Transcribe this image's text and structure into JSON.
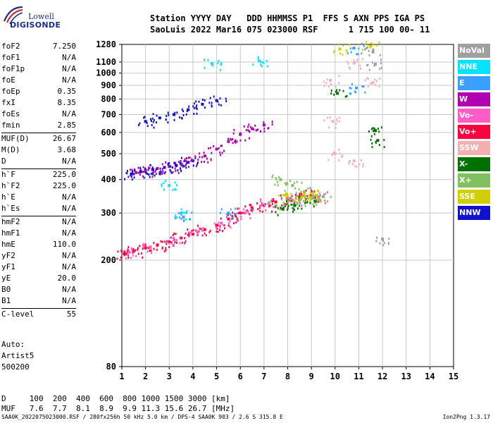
{
  "logo": {
    "line1": "Lowell",
    "line2": "DIGISONDE"
  },
  "header": {
    "line1": "Station YYYY DAY   DDD HHMMSS P1  FFS S AXN PPS IGA PS",
    "line2": "SaoLuis 2022 Mar16 075 023000 RSF      1 715 100 00- 11"
  },
  "params": [
    {
      "label": "foF2",
      "value": "7.250"
    },
    {
      "label": "foF1",
      "value": "N/A"
    },
    {
      "label": "foF1p",
      "value": "N/A"
    },
    {
      "label": "foE",
      "value": "N/A"
    },
    {
      "label": "foEp",
      "value": "0.35"
    },
    {
      "label": "fxI",
      "value": "8.35"
    },
    {
      "label": "foEs",
      "value": "N/A"
    },
    {
      "label": "fmin",
      "value": "2.85"
    },
    {
      "label": "MUF(D)",
      "value": "26.67"
    },
    {
      "label": "M(D)",
      "value": "3.68"
    },
    {
      "label": "D",
      "value": "N/A"
    },
    {
      "label": "h`F",
      "value": "225.0"
    },
    {
      "label": "h`F2",
      "value": "225.0"
    },
    {
      "label": "h`E",
      "value": "N/A"
    },
    {
      "label": "h`Es",
      "value": "N/A"
    },
    {
      "label": "hmF2",
      "value": "N/A"
    },
    {
      "label": "hmF1",
      "value": "N/A"
    },
    {
      "label": "hmE",
      "value": "110.0"
    },
    {
      "label": "yF2",
      "value": "N/A"
    },
    {
      "label": "yF1",
      "value": "N/A"
    },
    {
      "label": "yE",
      "value": "20.0"
    },
    {
      "label": "B0",
      "value": "N/A"
    },
    {
      "label": "B1",
      "value": "N/A"
    },
    {
      "label": "C-level",
      "value": "55"
    }
  ],
  "auto": [
    "Auto:",
    "Artist5",
    "500200"
  ],
  "legend": [
    {
      "label": "NoVal",
      "color": "#a0a0a0"
    },
    {
      "label": "NNE",
      "color": "#00e5ff"
    },
    {
      "label": "E",
      "color": "#3aa0ff"
    },
    {
      "label": "W",
      "color": "#b000b0"
    },
    {
      "label": "Vo-",
      "color": "#ff5cc8"
    },
    {
      "label": "Vo+",
      "color": "#ff0040"
    },
    {
      "label": "SSW",
      "color": "#f4b0b0"
    },
    {
      "label": "X-",
      "color": "#007000"
    },
    {
      "label": "X+",
      "color": "#80c060"
    },
    {
      "label": "SSE",
      "color": "#d0d000"
    },
    {
      "label": "NNW",
      "color": "#1010d0"
    }
  ],
  "muf_table": {
    "d_line": "D     100  200  400  600  800 1000 1500 3000 [km]",
    "muf_line": "MUF   7.6  7.7  8.1  8.9  9.9 11.3 15.6 26.7 [MHz]"
  },
  "footer": {
    "left": "SAA0K_2022075023000.RSF / 280fx256h 50 kHz 5.0 km / DPS-4 SAA0K 903 / 2.6 S 315.8 E",
    "right": "Ion2Png 1.3.17"
  },
  "chart_data": {
    "type": "scatter",
    "title": "",
    "xlabel": "",
    "ylabel": "",
    "x_ticks": [
      1,
      2,
      3,
      4,
      5,
      6,
      7,
      8,
      9,
      10,
      11,
      12,
      13,
      14,
      15
    ],
    "y_ticks": [
      80,
      200,
      300,
      400,
      500,
      600,
      700,
      800,
      900,
      1000,
      1100,
      1280
    ],
    "xlim": [
      1,
      15
    ],
    "ylim": [
      80,
      1280
    ],
    "y_scale": "log",
    "grid": true,
    "series": [
      {
        "name": "Vo+",
        "points": [
          [
            1.1,
            212
          ],
          [
            1.5,
            216
          ],
          [
            2.0,
            222
          ],
          [
            2.5,
            228
          ],
          [
            3.0,
            234
          ],
          [
            3.5,
            242
          ],
          [
            4.0,
            250
          ],
          [
            4.5,
            260
          ],
          [
            5.0,
            270
          ],
          [
            5.5,
            285
          ],
          [
            6.0,
            300
          ],
          [
            6.5,
            310
          ],
          [
            7.0,
            320
          ],
          [
            7.5,
            330
          ],
          [
            8.0,
            340
          ],
          [
            8.5,
            345
          ],
          [
            9.0,
            350
          ]
        ]
      },
      {
        "name": "Vo-",
        "points": [
          [
            1.3,
            214
          ],
          [
            2.2,
            224
          ],
          [
            3.2,
            238
          ],
          [
            4.2,
            255
          ],
          [
            5.2,
            275
          ],
          [
            6.2,
            300
          ],
          [
            7.2,
            325
          ],
          [
            8.2,
            335
          ],
          [
            9.3,
            345
          ]
        ]
      },
      {
        "name": "W",
        "points": [
          [
            1.6,
            425
          ],
          [
            2.0,
            432
          ],
          [
            2.5,
            440
          ],
          [
            3.0,
            448
          ],
          [
            3.5,
            458
          ],
          [
            4.0,
            470
          ],
          [
            4.5,
            490
          ],
          [
            5.0,
            520
          ],
          [
            5.5,
            555
          ],
          [
            6.0,
            590
          ],
          [
            6.5,
            620
          ],
          [
            7.0,
            640
          ]
        ]
      },
      {
        "name": "NNW",
        "points": [
          [
            1.4,
            420
          ],
          [
            1.8,
            428
          ],
          [
            2.3,
            436
          ],
          [
            2.8,
            444
          ],
          [
            3.3,
            452
          ],
          [
            3.8,
            464
          ],
          [
            2.0,
            660
          ],
          [
            2.6,
            680
          ],
          [
            3.2,
            700
          ],
          [
            3.8,
            730
          ],
          [
            4.4,
            765
          ],
          [
            5.0,
            790
          ]
        ]
      },
      {
        "name": "X+",
        "points": [
          [
            7.5,
            320
          ],
          [
            8.0,
            330
          ],
          [
            8.5,
            335
          ],
          [
            9.0,
            340
          ],
          [
            9.5,
            345
          ],
          [
            7.7,
            400
          ],
          [
            8.2,
            380
          ],
          [
            8.7,
            360
          ]
        ]
      },
      {
        "name": "X-",
        "points": [
          [
            7.8,
            310
          ],
          [
            8.3,
            320
          ],
          [
            8.8,
            330
          ],
          [
            11.7,
            610
          ],
          [
            11.8,
            560
          ],
          [
            10.1,
            840
          ]
        ]
      },
      {
        "name": "SSE",
        "points": [
          [
            7.9,
            350
          ],
          [
            8.6,
            345
          ],
          [
            9.2,
            350
          ],
          [
            10.2,
            1230
          ],
          [
            11.5,
            1260
          ]
        ]
      },
      {
        "name": "NNE",
        "points": [
          [
            4.8,
            1085
          ],
          [
            6.8,
            1110
          ],
          [
            3.0,
            380
          ],
          [
            3.5,
            300
          ]
        ]
      },
      {
        "name": "E",
        "points": [
          [
            3.6,
            290
          ],
          [
            5.5,
            300
          ],
          [
            10.8,
            1240
          ],
          [
            10.9,
            880
          ]
        ]
      },
      {
        "name": "SSW",
        "points": [
          [
            9.8,
            940
          ],
          [
            9.9,
            660
          ],
          [
            10.8,
            1090
          ],
          [
            10.8,
            470
          ],
          [
            11.6,
            920
          ],
          [
            10.0,
            500
          ]
        ]
      },
      {
        "name": "NoVal",
        "points": [
          [
            11.6,
            1200
          ],
          [
            12.0,
            240
          ],
          [
            11.7,
            1080
          ]
        ]
      }
    ]
  }
}
